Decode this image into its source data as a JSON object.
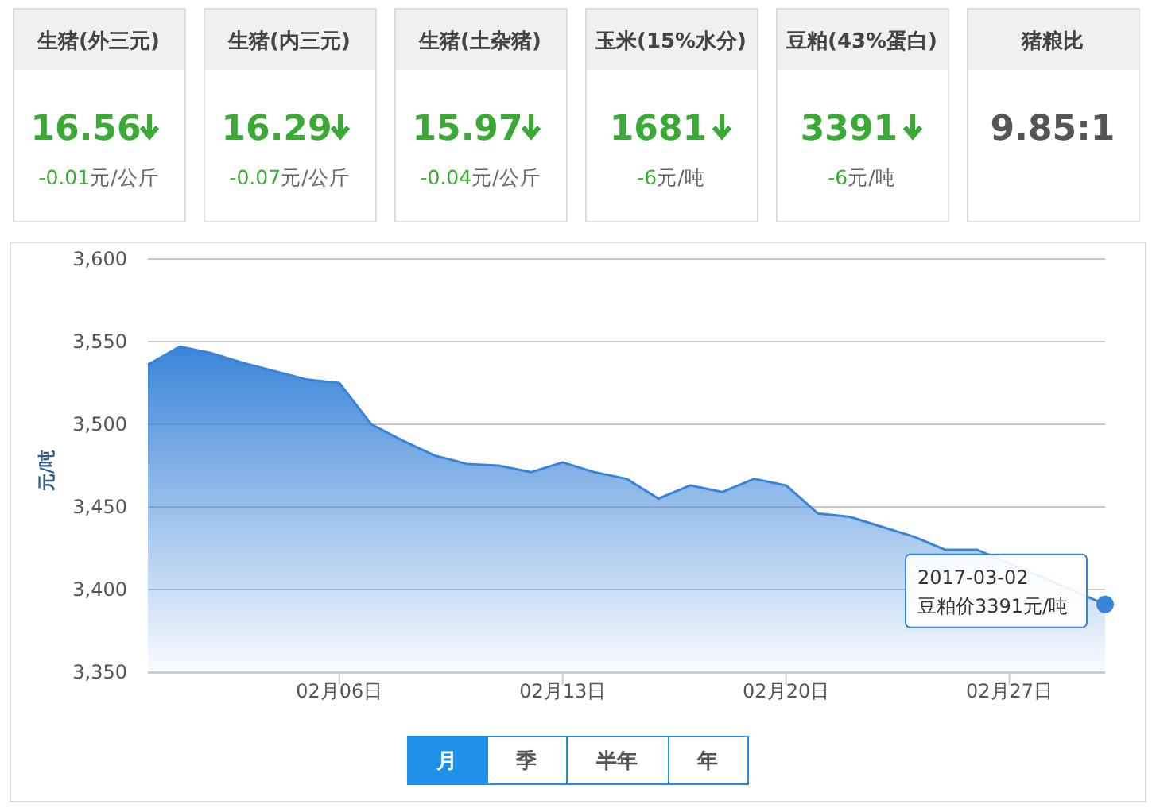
{
  "chart_data": [
    {
      "type": "other",
      "categories": [
        "生猪(外三元)",
        "生猪(内三元)",
        "生猪(土杂猪)",
        "玉米(15%水分)",
        "豆粕(43%蛋白)",
        "猪粮比"
      ],
      "value_labels": [
        "16.56",
        "16.29",
        "15.97",
        "1681",
        "3391",
        "9.85:1"
      ],
      "annotations": [
        "-0.01元/公斤",
        "-0.07元/公斤",
        "-0.04元/公斤",
        "-6元/吨",
        "-6元/吨"
      ]
    },
    {
      "type": "area",
      "ylabel": "元/吨",
      "x": [
        "2017-01-31",
        "2017-02-01",
        "2017-02-02",
        "2017-02-03",
        "2017-02-04",
        "2017-02-05",
        "2017-02-06",
        "2017-02-07",
        "2017-02-08",
        "2017-02-09",
        "2017-02-10",
        "2017-02-11",
        "2017-02-12",
        "2017-02-13",
        "2017-02-14",
        "2017-02-15",
        "2017-02-16",
        "2017-02-17",
        "2017-02-18",
        "2017-02-19",
        "2017-02-20",
        "2017-02-21",
        "2017-02-22",
        "2017-02-23",
        "2017-02-24",
        "2017-02-25",
        "2017-02-26",
        "2017-02-27",
        "2017-02-28",
        "2017-03-01",
        "2017-03-02"
      ],
      "series": [
        {
          "color": "#3a84d8",
          "values": [
            3536,
            3547,
            3543,
            3537,
            3532,
            3527,
            3525,
            3500,
            3490,
            3481,
            3476,
            3475,
            3471,
            3477,
            3471,
            3467,
            3455,
            3463,
            3459,
            3467,
            3463,
            3446,
            3444,
            3438,
            3432,
            3424,
            3424,
            null,
            null,
            null,
            3391
          ]
        }
      ],
      "xlim": [
        "2017-01-31",
        "2017-03-02"
      ],
      "xticks": [
        {
          "value": "2017-02-06",
          "label": "02月06日"
        },
        {
          "value": "2017-02-13",
          "label": "02月13日"
        },
        {
          "value": "2017-02-20",
          "label": "02月20日"
        },
        {
          "value": "2017-02-27",
          "label": "02月27日"
        }
      ],
      "ylim": [
        3350,
        3600
      ],
      "yticks": [
        {
          "value": 3350,
          "label": "3,350"
        },
        {
          "value": 3400,
          "label": "3,400"
        },
        {
          "value": 3450,
          "label": "3,450"
        },
        {
          "value": 3500,
          "label": "3,500"
        },
        {
          "value": 3550,
          "label": "3,550"
        },
        {
          "value": 3600,
          "label": "3,600"
        }
      ],
      "grid": "y",
      "marker": "none",
      "annotations": [
        {
          "text": "2017-03-02\n豆粕价3391元/吨",
          "x": "2017-03-02",
          "y": 3391
        },
        "月",
        "季",
        "半年",
        "年"
      ]
    }
  ]
}
